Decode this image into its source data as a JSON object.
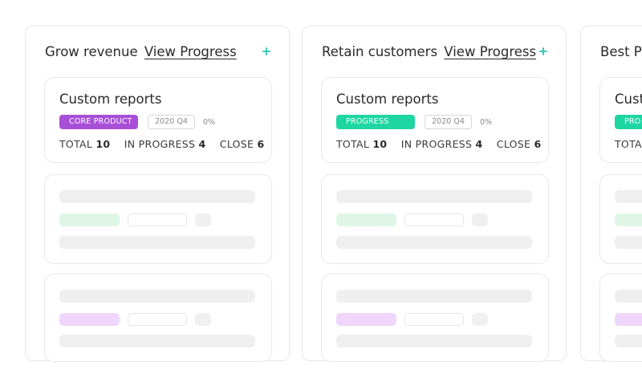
{
  "columns": [
    {
      "title": "Grow revenue",
      "link": "View Progress",
      "card": {
        "title": "Custom reports",
        "badge": "CORE PRODUCT",
        "badge_color": "#a84fd8",
        "quarter": "2020 Q4",
        "percent": "0%",
        "stats": [
          {
            "label": "TOTAL",
            "value": "10"
          },
          {
            "label": "IN PROGRESS",
            "value": "4"
          },
          {
            "label": "CLOSE",
            "value": "6"
          }
        ]
      }
    },
    {
      "title": "Retain customers",
      "link": "View Progress",
      "card": {
        "title": "Custom reports",
        "badge": "PROGRESS",
        "badge_color": "#1ed6a2",
        "quarter": "2020 Q4",
        "percent": "0%",
        "stats": [
          {
            "label": "TOTAL",
            "value": "10"
          },
          {
            "label": "IN PROGRESS",
            "value": "4"
          },
          {
            "label": "CLOSE",
            "value": "6"
          }
        ]
      }
    },
    {
      "title": "Best P",
      "card": {
        "title": "Cust",
        "badge": "PRO",
        "badge_color": "#1ed6a2",
        "stats_label": "TOTA"
      }
    }
  ],
  "placeholder_colors": {
    "green": "#dff6e6",
    "purple": "#f0d6fa"
  },
  "icons": {
    "add": "plus-icon"
  }
}
